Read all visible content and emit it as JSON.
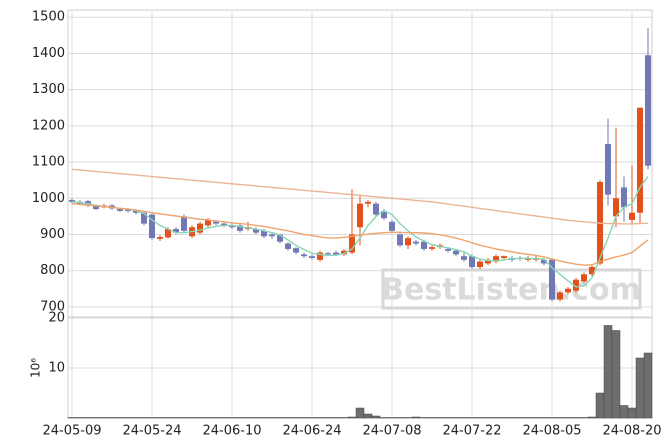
{
  "chart_data": {
    "type": "candlestick",
    "categories": [
      "24-05-09",
      null,
      null,
      null,
      null,
      null,
      null,
      null,
      null,
      null,
      "24-05-24",
      null,
      null,
      null,
      null,
      null,
      null,
      null,
      null,
      null,
      "24-06-10",
      null,
      null,
      null,
      null,
      null,
      null,
      null,
      null,
      null,
      "24-06-24",
      null,
      null,
      null,
      null,
      null,
      null,
      null,
      null,
      null,
      "24-07-08",
      null,
      null,
      null,
      null,
      null,
      null,
      null,
      null,
      null,
      "24-07-22",
      null,
      null,
      null,
      null,
      null,
      null,
      null,
      null,
      null,
      "24-08-05",
      null,
      null,
      null,
      null,
      null,
      null,
      null,
      null,
      null,
      "24-08-20",
      null,
      null
    ],
    "open": [
      995,
      990,
      992,
      978,
      975,
      980,
      970,
      968,
      965,
      960,
      955,
      888,
      892,
      915,
      950,
      895,
      905,
      925,
      935,
      930,
      925,
      925,
      915,
      915,
      910,
      900,
      900,
      875,
      862,
      845,
      840,
      830,
      848,
      850,
      845,
      850,
      920,
      985,
      985,
      965,
      935,
      900,
      870,
      880,
      880,
      860,
      865,
      860,
      855,
      840,
      840,
      810,
      820,
      825,
      835,
      835,
      835,
      830,
      830,
      830,
      830,
      720,
      740,
      745,
      770,
      790,
      820,
      1150,
      950,
      1030,
      940,
      960,
      1395
    ],
    "high": [
      1000,
      995,
      996,
      982,
      985,
      984,
      974,
      972,
      970,
      963,
      958,
      898,
      920,
      920,
      955,
      925,
      935,
      945,
      940,
      935,
      930,
      928,
      935,
      920,
      915,
      905,
      902,
      878,
      865,
      850,
      845,
      855,
      852,
      855,
      860,
      1025,
      1010,
      995,
      990,
      970,
      940,
      905,
      895,
      885,
      885,
      870,
      875,
      865,
      860,
      850,
      845,
      830,
      835,
      845,
      842,
      840,
      840,
      840,
      840,
      835,
      835,
      745,
      755,
      780,
      795,
      815,
      1050,
      1220,
      1195,
      1060,
      1090,
      1250,
      1470
    ],
    "low": [
      985,
      982,
      975,
      968,
      972,
      968,
      962,
      960,
      955,
      925,
      885,
      882,
      888,
      900,
      905,
      890,
      900,
      920,
      925,
      920,
      915,
      905,
      910,
      900,
      890,
      888,
      875,
      855,
      845,
      835,
      830,
      825,
      840,
      840,
      840,
      845,
      870,
      975,
      950,
      940,
      905,
      865,
      860,
      870,
      855,
      855,
      860,
      850,
      840,
      825,
      805,
      805,
      815,
      820,
      830,
      825,
      828,
      825,
      825,
      815,
      715,
      715,
      735,
      740,
      765,
      785,
      815,
      980,
      920,
      935,
      930,
      930,
      1080
    ],
    "close": [
      990,
      985,
      980,
      970,
      980,
      972,
      965,
      965,
      960,
      930,
      890,
      893,
      915,
      905,
      910,
      920,
      930,
      940,
      930,
      925,
      920,
      910,
      920,
      905,
      895,
      895,
      880,
      860,
      850,
      840,
      835,
      850,
      845,
      845,
      855,
      900,
      985,
      990,
      955,
      945,
      910,
      870,
      890,
      875,
      860,
      865,
      870,
      855,
      845,
      830,
      810,
      825,
      830,
      840,
      840,
      830,
      832,
      835,
      835,
      820,
      720,
      740,
      750,
      775,
      790,
      810,
      1045,
      1010,
      1000,
      975,
      960,
      1250,
      1090
    ],
    "up_color": "#e2501c",
    "down_color": "#7278b5",
    "series": [
      {
        "color": "#86d6b4",
        "values": [
          990,
          988,
          985,
          980,
          978,
          975,
          972,
          970,
          966,
          958,
          940,
          925,
          915,
          905,
          905,
          908,
          912,
          918,
          922,
          925,
          925,
          922,
          918,
          915,
          910,
          905,
          898,
          885,
          870,
          858,
          848,
          845,
          842,
          843,
          847,
          860,
          890,
          925,
          950,
          965,
          955,
          930,
          910,
          893,
          882,
          872,
          867,
          863,
          858,
          852,
          840,
          832,
          828,
          827,
          830,
          833,
          834,
          834,
          833,
          832,
          808,
          790,
          772,
          755,
          758,
          780,
          835,
          890,
          950,
          975,
          985,
          1030,
          1060
        ]
      },
      {
        "color": "#f0a36a",
        "values": [
          985,
          983,
          981,
          979,
          977,
          975,
          972,
          970,
          967,
          964,
          960,
          957,
          954,
          951,
          948,
          945,
          942,
          940,
          937,
          935,
          932,
          930,
          928,
          925,
          922,
          918,
          914,
          910,
          905,
          900,
          897,
          893,
          890,
          890,
          892,
          895,
          898,
          901,
          903,
          905,
          906,
          906,
          905,
          905,
          904,
          902,
          899,
          895,
          890,
          884,
          877,
          870,
          865,
          860,
          856,
          852,
          848,
          845,
          842,
          838,
          832,
          827,
          822,
          818,
          815,
          816,
          825,
          832,
          838,
          843,
          850,
          868,
          885
        ]
      },
      {
        "color": "#eab596",
        "values": [
          1080,
          1078,
          1076,
          1074,
          1072,
          1070,
          1068,
          1066,
          1064,
          1062,
          1060,
          1058,
          1056,
          1054,
          1052,
          1050,
          1048,
          1046,
          1044,
          1042,
          1040,
          1038,
          1036,
          1034,
          1032,
          1030,
          1028,
          1026,
          1024,
          1022,
          1020,
          1018,
          1016,
          1014,
          1012,
          1010,
          1008,
          1006,
          1004,
          1002,
          1000,
          998,
          996,
          994,
          992,
          990,
          987,
          984,
          981,
          978,
          975,
          972,
          969,
          966,
          963,
          960,
          957,
          954,
          951,
          948,
          945,
          942,
          939,
          937,
          935,
          933,
          931,
          930,
          930,
          929,
          929,
          930,
          931
        ]
      }
    ],
    "ylim": [
      672,
      1520
    ],
    "yticks": [
      700,
      800,
      900,
      1000,
      1100,
      1200,
      1300,
      1400,
      1500
    ],
    "grid": true,
    "volume": {
      "type": "bar",
      "color": "#6e6e6e",
      "ylabel": "10⁶",
      "ylim": [
        0,
        20
      ],
      "yticks": [
        10,
        20
      ],
      "values": [
        0.1,
        0.1,
        0.1,
        0.1,
        0.1,
        0.1,
        0.1,
        0.1,
        0.1,
        0.1,
        0.1,
        0.1,
        0.1,
        0.1,
        0.1,
        0.1,
        0.1,
        0.1,
        0.1,
        0.1,
        0.1,
        0.1,
        0.1,
        0.1,
        0.1,
        0.1,
        0.1,
        0.1,
        0.1,
        0.1,
        0.1,
        0.1,
        0.1,
        0.1,
        0.1,
        0.2,
        2,
        0.8,
        0.4,
        0.1,
        0.1,
        0.1,
        0.1,
        0.2,
        0.1,
        0.1,
        0.1,
        0.1,
        0.1,
        0.1,
        0.1,
        0.1,
        0.1,
        0.1,
        0.1,
        0.1,
        0.1,
        0.1,
        0.1,
        0.1,
        0.1,
        0.1,
        0.1,
        0.1,
        0.1,
        0.2,
        5,
        18.5,
        17.5,
        2.5,
        2,
        12,
        13
      ]
    },
    "watermark": "BestListen.com"
  }
}
